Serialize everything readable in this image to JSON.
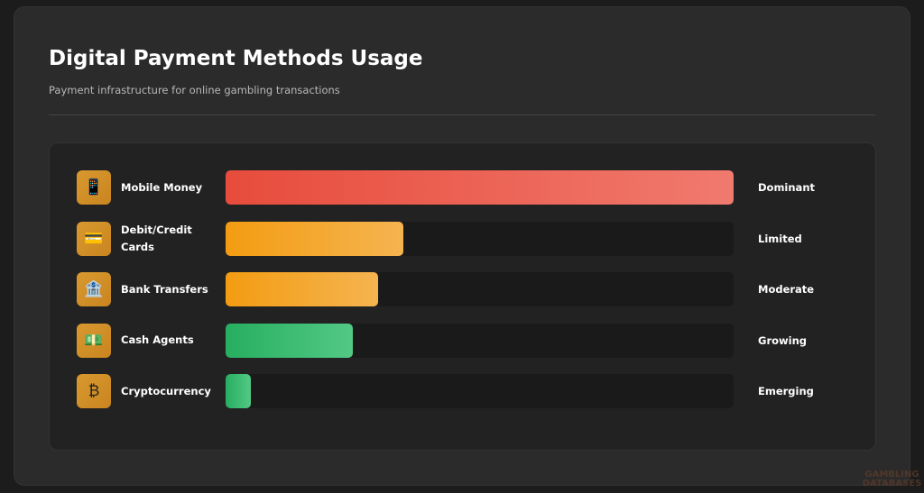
{
  "title": "Digital Payment Methods Usage",
  "subtitle": "Payment infrastructure for online gambling transactions",
  "watermark": "GAMBLING DATABASES",
  "chart_data": {
    "type": "bar",
    "orientation": "horizontal",
    "categories": [
      "Mobile Money",
      "Debit/Credit Cards",
      "Bank Transfers",
      "Cash Agents",
      "Cryptocurrency"
    ],
    "values": [
      100,
      35,
      30,
      25,
      5
    ],
    "status_labels": [
      "Dominant",
      "Limited",
      "Moderate",
      "Growing",
      "Emerging"
    ],
    "icons": [
      "mobile-phone-icon",
      "credit-card-icon",
      "bank-icon",
      "cash-icon",
      "bitcoin-icon"
    ],
    "icon_glyphs": [
      "📱",
      "💳",
      "🏦",
      "💵",
      "₿"
    ],
    "colors": [
      [
        "#e74c3c",
        "#f07a6e"
      ],
      [
        "#f39c12",
        "#f5b450"
      ],
      [
        "#f39c12",
        "#f5b450"
      ],
      [
        "#27ae60",
        "#52c985"
      ],
      [
        "#27ae60",
        "#52c985"
      ]
    ],
    "xlim": [
      0,
      100
    ]
  }
}
